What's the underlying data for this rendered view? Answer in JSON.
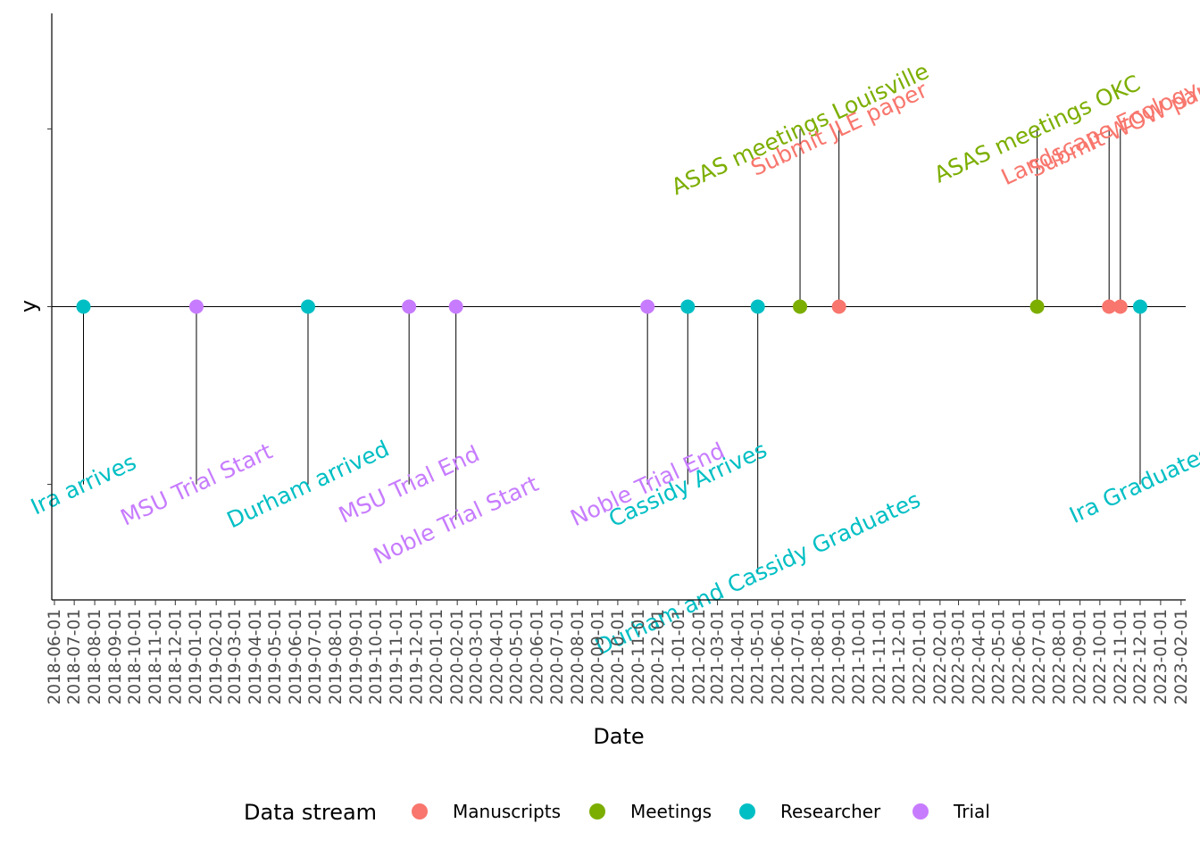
{
  "chart_data": {
    "type": "timeline",
    "xlabel": "Date",
    "ylabel": "y",
    "xlim": [
      "2018-05-28",
      "2023-02-08"
    ],
    "ylim": [
      -1.65,
      1.65
    ],
    "grid": false,
    "legend": {
      "title": "Data stream",
      "position": "bottom",
      "entries": [
        {
          "name": "Manuscripts",
          "color": "#F8766D"
        },
        {
          "name": "Meetings",
          "color": "#7CAE00"
        },
        {
          "name": "Researcher",
          "color": "#00BFC4"
        },
        {
          "name": "Trial",
          "color": "#C77CFF"
        }
      ]
    },
    "x_ticks": [
      "2018-06-01",
      "2018-07-01",
      "2018-08-01",
      "2018-09-01",
      "2018-10-01",
      "2018-11-01",
      "2018-12-01",
      "2019-01-01",
      "2019-02-01",
      "2019-03-01",
      "2019-04-01",
      "2019-05-01",
      "2019-06-01",
      "2019-07-01",
      "2019-08-01",
      "2019-09-01",
      "2019-10-01",
      "2019-11-01",
      "2019-12-01",
      "2020-01-01",
      "2020-02-01",
      "2020-03-01",
      "2020-04-01",
      "2020-05-01",
      "2020-06-01",
      "2020-07-01",
      "2020-08-01",
      "2020-09-01",
      "2020-10-01",
      "2020-11-01",
      "2020-12-01",
      "2021-01-01",
      "2021-02-01",
      "2021-03-01",
      "2021-04-01",
      "2021-05-01",
      "2021-06-01",
      "2021-07-01",
      "2021-08-01",
      "2021-09-01",
      "2021-10-01",
      "2021-11-01",
      "2021-12-01",
      "2022-01-01",
      "2022-02-01",
      "2022-03-01",
      "2022-04-01",
      "2022-05-01",
      "2022-06-01",
      "2022-07-01",
      "2022-08-01",
      "2022-09-01",
      "2022-10-01",
      "2022-11-01",
      "2022-12-01",
      "2023-01-01",
      "2023-02-01"
    ],
    "y_ticks": [
      -1,
      0,
      1
    ],
    "events": [
      {
        "date": "2018-07-15",
        "label": "Ira arrives",
        "stream": "Researcher",
        "y": -1
      },
      {
        "date": "2019-01-02",
        "label": "MSU Trial Start",
        "stream": "Trial",
        "y": -1
      },
      {
        "date": "2019-06-20",
        "label": "Durham arrived",
        "stream": "Researcher",
        "y": -1
      },
      {
        "date": "2019-11-20",
        "label": "MSU Trial End",
        "stream": "Trial",
        "y": -1
      },
      {
        "date": "2020-01-30",
        "label": "Noble Trial Start",
        "stream": "Trial",
        "y": -1.2
      },
      {
        "date": "2020-11-15",
        "label": "Noble Trial End",
        "stream": "Trial",
        "y": -1
      },
      {
        "date": "2021-01-15",
        "label": "Cassidy Arrives",
        "stream": "Researcher",
        "y": -1
      },
      {
        "date": "2021-05-01",
        "label": "Durham and Cassidy Graduates",
        "stream": "Researcher",
        "y": -1.5
      },
      {
        "date": "2021-07-04",
        "label": "ASAS meetings Louisville",
        "stream": "Meetings",
        "y": 1
      },
      {
        "date": "2021-09-01",
        "label": "Submit JLE paper",
        "stream": "Manuscripts",
        "y": 1
      },
      {
        "date": "2022-06-28",
        "label": "ASAS meetings OKC",
        "stream": "Meetings",
        "y": 1
      },
      {
        "date": "2022-10-15",
        "label": "Landscape Ecology P",
        "stream": "Manuscripts",
        "y": 1
      },
      {
        "date": "2022-11-01",
        "label": "Submit WOW pap",
        "stream": "Manuscripts",
        "y": 1
      },
      {
        "date": "2022-12-01",
        "label": "Ira Graduates",
        "stream": "Researcher",
        "y": -1
      }
    ]
  }
}
